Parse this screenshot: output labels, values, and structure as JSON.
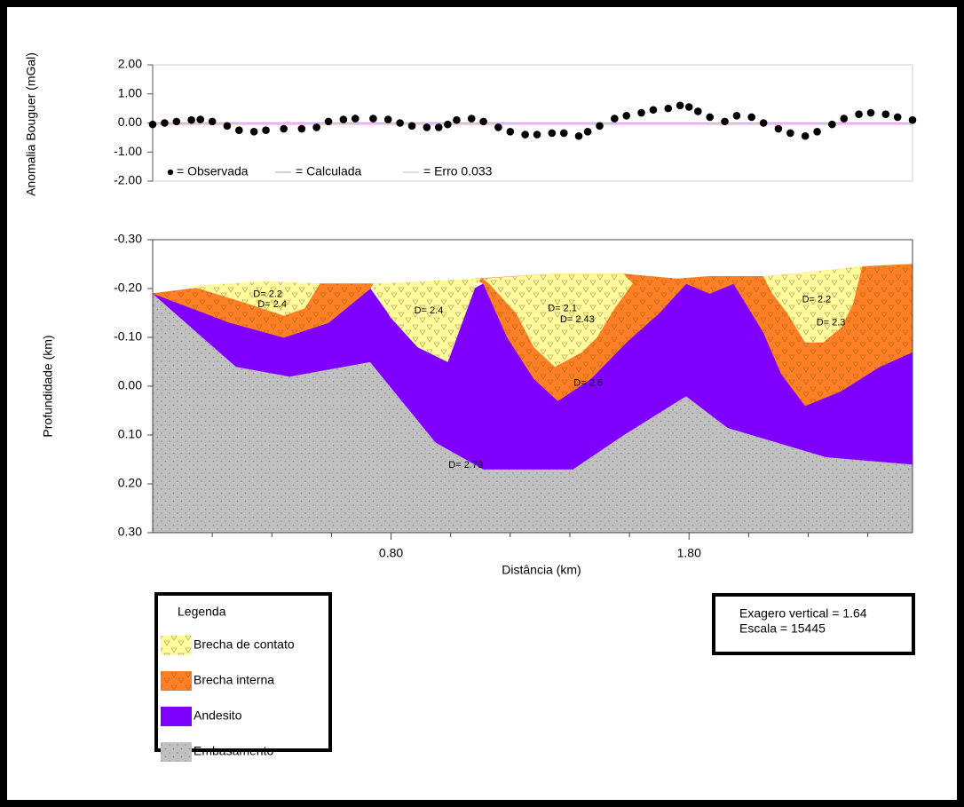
{
  "chart_data": [
    {
      "type": "profile",
      "y_label": "Anomalia Bouguer (mGal)",
      "xlim": [
        0,
        2.55
      ],
      "ylim": [
        -2,
        2
      ],
      "yticks": [
        {
          "value": 2,
          "label": "2.00"
        },
        {
          "value": 1,
          "label": "1.00"
        },
        {
          "value": 0,
          "label": "0.00"
        },
        {
          "value": -1,
          "label": "-1.00"
        },
        {
          "value": -2,
          "label": "-2.00"
        }
      ],
      "series": [
        {
          "name": "= Observada",
          "kind": "dots",
          "color": "#000000",
          "x": [
            0.0,
            0.04,
            0.08,
            0.13,
            0.16,
            0.2,
            0.25,
            0.29,
            0.34,
            0.38,
            0.44,
            0.5,
            0.55,
            0.59,
            0.64,
            0.68,
            0.74,
            0.79,
            0.83,
            0.87,
            0.92,
            0.96,
            0.99,
            1.02,
            1.07,
            1.11,
            1.16,
            1.2,
            1.25,
            1.29,
            1.34,
            1.38,
            1.43,
            1.46,
            1.5,
            1.55,
            1.59,
            1.64,
            1.68,
            1.73,
            1.77,
            1.8,
            1.83,
            1.87,
            1.92,
            1.96,
            2.01,
            2.05,
            2.1,
            2.14,
            2.19,
            2.23,
            2.28,
            2.32,
            2.37,
            2.41,
            2.46,
            2.5,
            2.55
          ],
          "values": [
            -0.05,
            0.0,
            0.05,
            0.1,
            0.12,
            0.05,
            -0.1,
            -0.25,
            -0.3,
            -0.25,
            -0.2,
            -0.2,
            -0.15,
            0.05,
            0.12,
            0.15,
            0.15,
            0.12,
            0.0,
            -0.1,
            -0.15,
            -0.15,
            -0.05,
            0.1,
            0.15,
            0.05,
            -0.15,
            -0.3,
            -0.4,
            -0.4,
            -0.35,
            -0.35,
            -0.45,
            -0.3,
            -0.1,
            0.15,
            0.25,
            0.35,
            0.45,
            0.5,
            0.6,
            0.55,
            0.4,
            0.2,
            0.05,
            0.25,
            0.2,
            0.0,
            -0.2,
            -0.35,
            -0.45,
            -0.3,
            -0.05,
            0.15,
            0.3,
            0.35,
            0.3,
            0.2,
            0.1
          ]
        },
        {
          "name": "= Calculada",
          "kind": "line",
          "color": "#c9a8d8",
          "x": [
            0,
            2.55
          ],
          "values": [
            0,
            0
          ]
        },
        {
          "name": "= Erro 0.033",
          "kind": "line",
          "color": "#e0c0c8",
          "x": [
            0,
            2.55
          ],
          "values": [
            -0.05,
            -0.05
          ]
        }
      ]
    },
    {
      "type": "section",
      "x_label": "Distância (km)",
      "y_label": "Profundidade (km)",
      "xlim": [
        0,
        2.55
      ],
      "ylim": [
        -0.3,
        0.3
      ],
      "y_inverted": true,
      "yticks": [
        {
          "value": -0.3,
          "label": "-0.30"
        },
        {
          "value": -0.2,
          "label": "-0.20"
        },
        {
          "value": -0.1,
          "label": "-0.10"
        },
        {
          "value": 0,
          "label": "0.00"
        },
        {
          "value": 0.1,
          "label": "0.10"
        },
        {
          "value": 0.2,
          "label": "0.20"
        },
        {
          "value": 0.3,
          "label": "0.30"
        }
      ],
      "xticks": [
        {
          "value": 0.8,
          "label": "0.80"
        },
        {
          "value": 1.8,
          "label": "1.80"
        }
      ],
      "xminorticks": [
        0.2,
        0.4,
        0.6,
        1.0,
        1.2,
        1.4,
        1.6,
        2.0,
        2.2,
        2.4
      ],
      "legend_title": "Legenda",
      "layers": [
        {
          "name": "Brecha de contato",
          "color": "#fffa9e",
          "pattern": "triangles",
          "bodies": [
            {
              "label": "D= 2.2",
              "x": [
                0.13,
                0.38,
                0.56,
                0.51,
                0.44,
                0.29
              ],
              "y": [
                -0.205,
                -0.215,
                -0.21,
                -0.16,
                -0.145,
                -0.175
              ]
            },
            {
              "label": "D= 2.4",
              "x": [
                0.74,
                1.1,
                1.08,
                0.99,
                0.89,
                0.8,
                0.74
              ],
              "y": [
                -0.21,
                -0.22,
                -0.2,
                -0.05,
                -0.08,
                -0.14,
                -0.2
              ]
            },
            {
              "label": "D= 2.1",
              "x": [
                1.11,
                1.34,
                1.58,
                1.61,
                1.55,
                1.49,
                1.44,
                1.35,
                1.28,
                1.22,
                1.13
              ],
              "y": [
                -0.22,
                -0.23,
                -0.23,
                -0.21,
                -0.16,
                -0.1,
                -0.07,
                -0.04,
                -0.08,
                -0.15,
                -0.21
              ]
            },
            {
              "label": "D= 2.2",
              "x": [
                2.05,
                2.23,
                2.38,
                2.35,
                2.31,
                2.25,
                2.19,
                2.13,
                2.08
              ],
              "y": [
                -0.225,
                -0.235,
                -0.245,
                -0.17,
                -0.12,
                -0.09,
                -0.09,
                -0.15,
                -0.19
              ]
            }
          ]
        },
        {
          "name": "Brecha interna",
          "color": "#ff7f27",
          "pattern": "triangles",
          "bodies": [
            {
              "label": "D= 2.4",
              "x": [
                0,
                0.2,
                0.47,
                0.74,
                0.73,
                0.59,
                0.44,
                0.26,
                0.13
              ],
              "y": [
                -0.19,
                -0.205,
                -0.21,
                -0.21,
                -0.2,
                -0.13,
                -0.1,
                -0.13,
                -0.16
              ]
            },
            {
              "label": "D= 2.43",
              "x": [
                1.08,
                1.34,
                1.58,
                1.76,
                1.87,
                1.87,
                1.79,
                1.7,
                1.59,
                1.47,
                1.36,
                1.28,
                1.19,
                1.11
              ],
              "y": [
                -0.22,
                -0.23,
                -0.23,
                -0.22,
                -0.225,
                -0.19,
                -0.21,
                -0.15,
                -0.09,
                -0.015,
                0.03,
                -0.015,
                -0.1,
                -0.21
              ]
            },
            {
              "label": "D= 2.3",
              "x": [
                1.87,
                2.05,
                2.23,
                2.38,
                2.55,
                2.55,
                2.44,
                2.31,
                2.19,
                2.11,
                2.05,
                1.95,
                1.87
              ],
              "y": [
                -0.225,
                -0.225,
                -0.235,
                -0.245,
                -0.25,
                -0.07,
                -0.04,
                0.01,
                0.04,
                -0.025,
                -0.11,
                -0.21,
                -0.19
              ]
            }
          ]
        },
        {
          "name": "Andesito",
          "color": "#8000ff",
          "pattern": "none",
          "bodies": [
            {
              "label": "D= 2.6",
              "x": [
                0,
                0.13,
                0.26,
                0.44,
                0.59,
                0.73,
                0.8,
                0.89,
                0.99,
                1.08,
                1.11,
                1.19,
                1.28,
                1.36,
                1.47,
                1.59,
                1.7,
                1.79,
                1.87,
                1.95,
                2.05,
                2.11,
                2.19,
                2.31,
                2.44,
                2.55,
                2.55,
                2.26,
                1.93,
                1.79,
                1.58,
                1.41,
                1.11,
                0.95,
                0.73,
                0.46,
                0.28
              ],
              "y": [
                -0.19,
                -0.16,
                -0.13,
                -0.1,
                -0.13,
                -0.2,
                -0.14,
                -0.08,
                -0.05,
                -0.2,
                -0.21,
                -0.1,
                -0.015,
                0.03,
                -0.015,
                -0.09,
                -0.15,
                -0.21,
                -0.19,
                -0.21,
                -0.11,
                -0.025,
                0.04,
                0.01,
                -0.04,
                -0.07,
                0.16,
                0.145,
                0.085,
                0.02,
                0.1,
                0.17,
                0.17,
                0.115,
                -0.05,
                -0.02,
                -0.04
              ]
            }
          ]
        },
        {
          "name": "Embasamento",
          "color": "#c0c0c0",
          "pattern": "dots",
          "bodies": [
            {
              "label": "D= 2.79",
              "x": [
                0,
                0.28,
                0.46,
                0.73,
                0.95,
                1.11,
                1.41,
                1.58,
                1.79,
                1.93,
                2.26,
                2.55,
                2.55,
                0
              ],
              "y": [
                -0.19,
                -0.04,
                -0.02,
                -0.05,
                0.115,
                0.17,
                0.17,
                0.1,
                0.02,
                0.085,
                0.145,
                0.16,
                0.3,
                0.3
              ]
            }
          ]
        }
      ],
      "notes": [
        "Exagero vertical = 1.64",
        "Escala = 15445"
      ]
    }
  ]
}
